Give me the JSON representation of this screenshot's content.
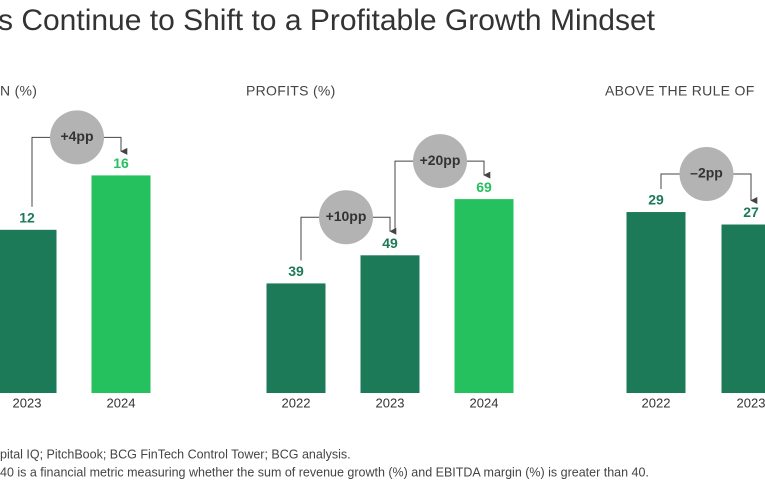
{
  "title": "s Continue to Shift to a Profitable Growth Mindset",
  "footnotes": [
    "pital IQ; PitchBook; BCG FinTech Control Tower; BCG analysis.",
    "40 is a financial metric measuring whether the sum of revenue growth (%) and EBITDA margin (%) is greater than 40."
  ],
  "chart_data": [
    {
      "type": "bar",
      "title": "N (%)",
      "categories": [
        "2023",
        "2024"
      ],
      "values": [
        12,
        16
      ],
      "colors": [
        "#1d7a58",
        "#24c15e"
      ],
      "annotations": [
        "+4pp"
      ]
    },
    {
      "type": "bar",
      "title": "PROFITS (%)",
      "categories": [
        "2022",
        "2023",
        "2024"
      ],
      "values": [
        39,
        49,
        69
      ],
      "colors": [
        "#1d7a58",
        "#1d7a58",
        "#24c15e"
      ],
      "annotations": [
        "+10pp",
        "+20pp"
      ]
    },
    {
      "type": "bar",
      "title": "ABOVE THE RULE OF",
      "categories": [
        "2022",
        "2023"
      ],
      "values": [
        29,
        27
      ],
      "colors": [
        "#1d7a58",
        "#1d7a58"
      ],
      "annotations": [
        "–2pp"
      ]
    }
  ]
}
